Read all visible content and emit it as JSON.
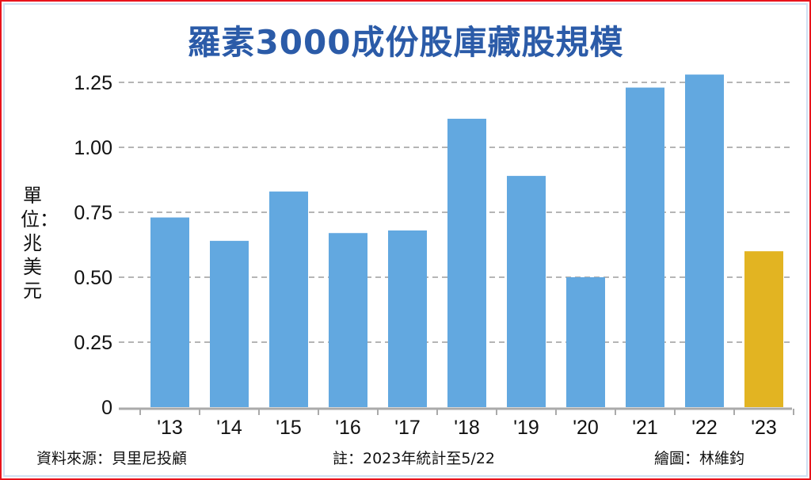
{
  "chart_data": {
    "type": "bar",
    "title": "羅素3000成份股庫藏股規模",
    "ylabel": "單位：兆美元",
    "xlabel": "",
    "categories": [
      "'13",
      "'14",
      "'15",
      "'16",
      "'17",
      "'18",
      "'19",
      "'20",
      "'21",
      "'22",
      "'23"
    ],
    "values": [
      0.73,
      0.64,
      0.83,
      0.67,
      0.68,
      1.11,
      0.89,
      0.5,
      1.23,
      1.28,
      0.6
    ],
    "ylim": [
      0,
      1.25
    ],
    "yticks": [
      "0",
      "0.25",
      "0.50",
      "0.75",
      "1.00",
      "1.25"
    ],
    "ytick_values": [
      0,
      0.25,
      0.5,
      0.75,
      1.0,
      1.25
    ],
    "grid": true,
    "colors": {
      "bar": "#62a8e0",
      "highlight": "#e2b422",
      "highlight_index": 10
    }
  },
  "footer": {
    "source": "資料來源：貝里尼投顧",
    "note": "註：2023年統計至5/22",
    "credit": "繪圖：林維鈞"
  }
}
